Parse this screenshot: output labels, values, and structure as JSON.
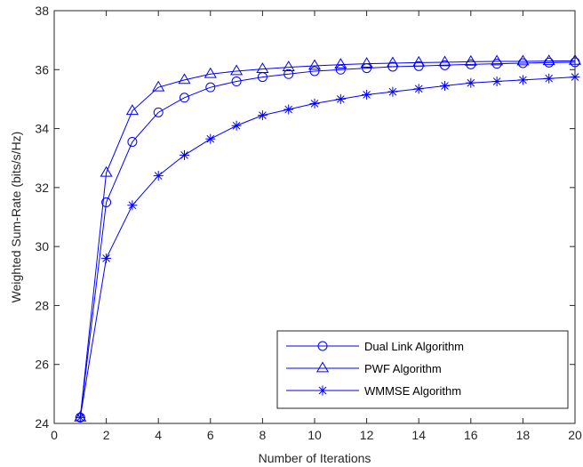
{
  "chart_data": {
    "type": "line",
    "title": "",
    "xlabel": "Number of Iterations",
    "ylabel": "Weighted Sum-Rate (bits/s/Hz)",
    "xlim": [
      0,
      20
    ],
    "ylim": [
      24,
      38
    ],
    "x_ticks": [
      0,
      2,
      4,
      6,
      8,
      10,
      12,
      14,
      16,
      18,
      20
    ],
    "y_ticks": [
      24,
      26,
      28,
      30,
      32,
      34,
      36,
      38
    ],
    "grid": false,
    "legend_position": "lower-right",
    "line_color": "#0000ff",
    "x": [
      1,
      2,
      3,
      4,
      5,
      6,
      7,
      8,
      9,
      10,
      11,
      12,
      13,
      14,
      15,
      16,
      17,
      18,
      19,
      20
    ],
    "series": [
      {
        "name": "Dual Link Algorithm",
        "marker": "circle",
        "values": [
          24.2,
          31.5,
          33.55,
          34.55,
          35.05,
          35.4,
          35.6,
          35.75,
          35.85,
          35.95,
          36.0,
          36.05,
          36.1,
          36.12,
          36.15,
          36.18,
          36.2,
          36.22,
          36.24,
          36.25
        ]
      },
      {
        "name": "PWF Algorithm",
        "marker": "triangle",
        "values": [
          24.2,
          32.5,
          34.6,
          35.4,
          35.65,
          35.85,
          35.95,
          36.02,
          36.08,
          36.13,
          36.17,
          36.2,
          36.22,
          36.24,
          36.25,
          36.27,
          36.28,
          36.28,
          36.29,
          36.3
        ]
      },
      {
        "name": "WMMSE Algorithm",
        "marker": "asterisk",
        "values": [
          24.2,
          29.6,
          31.4,
          32.4,
          33.1,
          33.65,
          34.1,
          34.45,
          34.65,
          34.85,
          35.0,
          35.15,
          35.25,
          35.35,
          35.45,
          35.55,
          35.6,
          35.65,
          35.7,
          35.75
        ]
      }
    ]
  }
}
